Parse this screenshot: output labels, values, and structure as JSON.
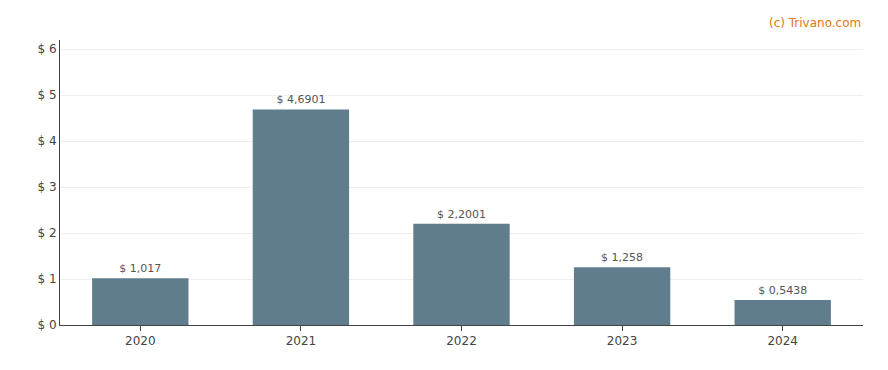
{
  "chart_data": {
    "type": "bar",
    "categories": [
      "2020",
      "2021",
      "2022",
      "2023",
      "2024"
    ],
    "values": [
      1.017,
      4.6901,
      2.2001,
      1.258,
      0.5438
    ],
    "value_labels": [
      "$ 1,017",
      "$ 4,6901",
      "$ 2,2001",
      "$ 1,258",
      "$ 0,5438"
    ],
    "data_labels": true,
    "color": "#5f7d8c",
    "ylim": [
      0,
      6.2
    ],
    "yticks": [
      {
        "value": 0,
        "label": "$ 0"
      },
      {
        "value": 1,
        "label": "$ 1"
      },
      {
        "value": 2,
        "label": "$ 2"
      },
      {
        "value": 3,
        "label": "$ 3"
      },
      {
        "value": 4,
        "label": "$ 4"
      },
      {
        "value": 5,
        "label": "$ 5"
      },
      {
        "value": 6,
        "label": "$ 6"
      }
    ],
    "grid": true,
    "annotations": [
      {
        "text": "(c) Trivano.com",
        "color": "#e07820"
      }
    ]
  }
}
